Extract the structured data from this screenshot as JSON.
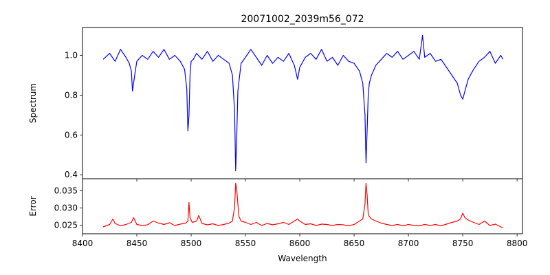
{
  "chart_data": [
    {
      "type": "line",
      "panel": "top",
      "title": "20071002_2039m56_072",
      "xlabel": "",
      "ylabel": "Spectrum",
      "xlim": [
        8400,
        8805
      ],
      "ylim": [
        0.38,
        1.14
      ],
      "x_ticks": [
        8400,
        8450,
        8500,
        8550,
        8600,
        8650,
        8700,
        8750,
        8800
      ],
      "y_ticks": [
        0.4,
        0.6,
        0.8,
        1.0
      ],
      "y_tick_labels": [
        "0.4",
        "0.6",
        "0.8",
        "1.0"
      ],
      "series": [
        {
          "color": "#0000ff",
          "x": [
            8419,
            8425,
            8430,
            8435,
            8440,
            8443,
            8445,
            8446,
            8448,
            8450,
            8455,
            8460,
            8465,
            8470,
            8475,
            8480,
            8485,
            8490,
            8494,
            8496,
            8497,
            8498,
            8499,
            8500,
            8502,
            8505,
            8510,
            8515,
            8520,
            8525,
            8530,
            8535,
            8538,
            8540,
            8541,
            8542,
            8543,
            8544,
            8546,
            8550,
            8555,
            8560,
            8565,
            8570,
            8575,
            8580,
            8585,
            8590,
            8595,
            8598,
            8600,
            8605,
            8610,
            8615,
            8620,
            8625,
            8630,
            8635,
            8640,
            8645,
            8650,
            8655,
            8658,
            8660,
            8661,
            8662,
            8663,
            8664,
            8666,
            8670,
            8675,
            8680,
            8685,
            8690,
            8695,
            8700,
            8705,
            8710,
            8713,
            8715,
            8720,
            8725,
            8730,
            8735,
            8740,
            8745,
            8748,
            8750,
            8752,
            8755,
            8760,
            8765,
            8770,
            8775,
            8780,
            8785,
            8787
          ],
          "y": [
            0.98,
            1.01,
            0.97,
            1.03,
            0.99,
            0.96,
            0.92,
            0.82,
            0.9,
            0.97,
            1.0,
            0.98,
            1.02,
            0.99,
            1.03,
            0.98,
            1.0,
            0.97,
            0.93,
            0.83,
            0.62,
            0.7,
            0.9,
            0.97,
            0.98,
            1.01,
            0.98,
            1.02,
            0.97,
            1.0,
            0.98,
            0.96,
            0.9,
            0.72,
            0.42,
            0.6,
            0.82,
            0.87,
            0.96,
            0.99,
            1.03,
            0.99,
            0.95,
            1.0,
            0.96,
            0.99,
            0.97,
            1.01,
            0.95,
            0.88,
            0.94,
            0.99,
            1.01,
            0.98,
            1.03,
            0.97,
            0.99,
            0.95,
            1.0,
            0.97,
            0.96,
            0.92,
            0.86,
            0.7,
            0.46,
            0.62,
            0.8,
            0.86,
            0.9,
            0.95,
            0.98,
            1.01,
            0.99,
            1.02,
            0.98,
            1.0,
            1.02,
            0.98,
            1.1,
            0.99,
            1.01,
            0.97,
            0.98,
            0.94,
            0.9,
            0.86,
            0.8,
            0.78,
            0.82,
            0.88,
            0.93,
            0.97,
            0.99,
            1.02,
            0.96,
            1.0,
            0.98
          ]
        }
      ]
    },
    {
      "type": "line",
      "panel": "bottom",
      "title": "",
      "xlabel": "Wavelength",
      "ylabel": "Error",
      "xlim": [
        8400,
        8805
      ],
      "ylim": [
        0.0225,
        0.0385
      ],
      "x_ticks": [
        8400,
        8450,
        8500,
        8550,
        8600,
        8650,
        8700,
        8750,
        8800
      ],
      "y_ticks": [
        0.025,
        0.03,
        0.035
      ],
      "y_tick_labels": [
        "0.025",
        "0.030",
        "0.035"
      ],
      "series": [
        {
          "color": "#ff0000",
          "x": [
            8419,
            8425,
            8428,
            8430,
            8435,
            8440,
            8445,
            8447,
            8450,
            8455,
            8460,
            8465,
            8470,
            8475,
            8480,
            8485,
            8490,
            8495,
            8497,
            8498,
            8499,
            8501,
            8505,
            8507,
            8510,
            8515,
            8520,
            8525,
            8530,
            8535,
            8538,
            8540,
            8541,
            8542,
            8543,
            8544,
            8546,
            8550,
            8555,
            8560,
            8565,
            8570,
            8575,
            8580,
            8585,
            8590,
            8595,
            8598,
            8600,
            8605,
            8610,
            8615,
            8620,
            8625,
            8630,
            8635,
            8640,
            8645,
            8650,
            8655,
            8658,
            8660,
            8661,
            8662,
            8663,
            8664,
            8666,
            8670,
            8675,
            8680,
            8685,
            8690,
            8695,
            8700,
            8705,
            8710,
            8715,
            8720,
            8725,
            8730,
            8735,
            8740,
            8745,
            8748,
            8750,
            8752,
            8755,
            8760,
            8765,
            8770,
            8775,
            8780,
            8785,
            8787
          ],
          "y": [
            0.0245,
            0.0252,
            0.0268,
            0.0255,
            0.0248,
            0.0252,
            0.0258,
            0.0272,
            0.0252,
            0.0249,
            0.0251,
            0.0262,
            0.0256,
            0.0252,
            0.0257,
            0.0249,
            0.0253,
            0.0256,
            0.0262,
            0.0316,
            0.0272,
            0.0258,
            0.0262,
            0.0278,
            0.0255,
            0.0251,
            0.0254,
            0.0249,
            0.0252,
            0.0256,
            0.0262,
            0.0302,
            0.0372,
            0.0352,
            0.0312,
            0.0275,
            0.0262,
            0.0258,
            0.0252,
            0.0258,
            0.0249,
            0.0255,
            0.0251,
            0.0254,
            0.0258,
            0.0252,
            0.0262,
            0.0268,
            0.0262,
            0.0252,
            0.0254,
            0.0249,
            0.0253,
            0.0252,
            0.0249,
            0.0252,
            0.0251,
            0.0248,
            0.0252,
            0.0262,
            0.0268,
            0.0312,
            0.0372,
            0.0338,
            0.0282,
            0.0275,
            0.0268,
            0.0262,
            0.0256,
            0.0252,
            0.0249,
            0.0252,
            0.0248,
            0.0252,
            0.0249,
            0.0248,
            0.0252,
            0.0249,
            0.0252,
            0.0248,
            0.0253,
            0.0258,
            0.0262,
            0.0268,
            0.0285,
            0.0272,
            0.0265,
            0.0258,
            0.0252,
            0.0262,
            0.0249,
            0.0253,
            0.0245,
            0.0242
          ]
        }
      ]
    }
  ]
}
